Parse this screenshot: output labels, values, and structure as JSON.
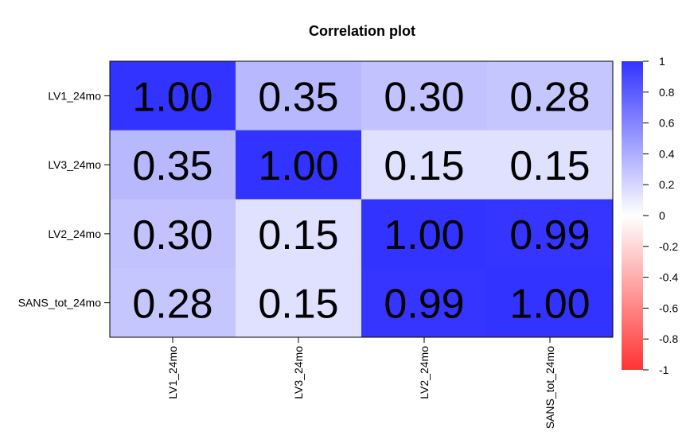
{
  "chart_data": {
    "type": "heatmap",
    "title": "Correlation plot",
    "rows": [
      "LV1_24mo",
      "LV3_24mo",
      "LV2_24mo",
      "SANS_tot_24mo"
    ],
    "columns": [
      "LV1_24mo",
      "LV3_24mo",
      "LV2_24mo",
      "SANS_tot_24mo"
    ],
    "values": [
      [
        1.0,
        0.35,
        0.3,
        0.28
      ],
      [
        0.35,
        1.0,
        0.15,
        0.15
      ],
      [
        0.3,
        0.15,
        1.0,
        0.99
      ],
      [
        0.28,
        0.15,
        0.99,
        1.0
      ]
    ],
    "value_labels": [
      [
        "1.00",
        "0.35",
        "0.30",
        "0.28"
      ],
      [
        "0.35",
        "1.00",
        "0.15",
        "0.15"
      ],
      [
        "0.30",
        "0.15",
        "1.00",
        "0.99"
      ],
      [
        "0.28",
        "0.15",
        "0.99",
        "1.00"
      ]
    ],
    "color_scale": {
      "min": -1,
      "max": 1,
      "low_color": "#ff3333",
      "mid_color": "#ffffff",
      "high_color": "#3333ff",
      "tick_values": [
        1,
        0.8,
        0.6,
        0.4,
        0.2,
        0,
        -0.2,
        -0.4,
        -0.6,
        -0.8,
        -1
      ],
      "tick_labels": [
        "1",
        "0.8",
        "0.6",
        "0.4",
        "0.2",
        "0",
        "-0.2",
        "-0.4",
        "-0.6",
        "-0.8",
        "-1"
      ]
    },
    "legend_placement": "right",
    "grid": false
  }
}
